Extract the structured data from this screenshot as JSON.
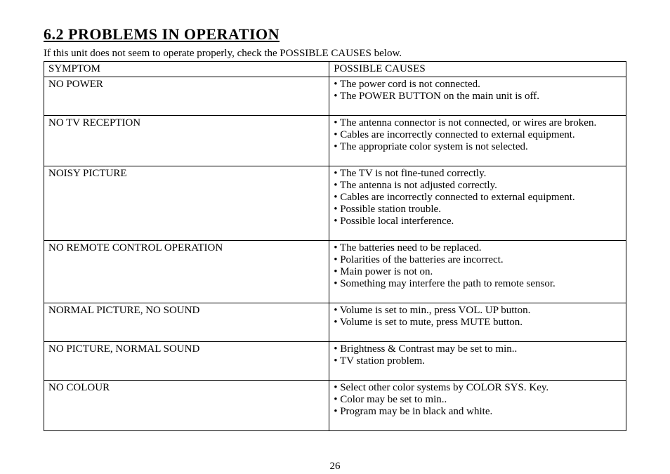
{
  "heading": "6.2  PROBLEMS IN OPERATION",
  "intro": "If this unit does not seem to operate properly, check the POSSIBLE CAUSES below.",
  "table": {
    "columns": [
      "SYMPTOM",
      "POSSIBLE CAUSES"
    ],
    "rows": [
      {
        "symptom": "NO POWER",
        "causes": [
          "• The power cord is not connected.",
          "• The POWER BUTTON on the main unit is off."
        ]
      },
      {
        "symptom": "NO TV RECEPTION",
        "causes": [
          "• The antenna connector is not connected, or wires are broken.",
          "• Cables are incorrectly connected to external equipment.",
          "• The appropriate color system is not selected."
        ]
      },
      {
        "symptom": "NOISY PICTURE",
        "causes": [
          "• The TV is not fine-tuned correctly.",
          "• The antenna is not adjusted correctly.",
          "• Cables are incorrectly connected to external equipment.",
          "• Possible station trouble.",
          "• Possible local interference."
        ]
      },
      {
        "symptom": "NO REMOTE CONTROL OPERATION",
        "causes": [
          "• The batteries need to be replaced.",
          "• Polarities of the batteries are incorrect.",
          "• Main power is not on.",
          "• Something may interfere the path to remote sensor."
        ]
      },
      {
        "symptom": "NORMAL PICTURE, NO SOUND",
        "causes": [
          "• Volume is set to min., press VOL. UP button.",
          "• Volume is set to mute, press MUTE button."
        ]
      },
      {
        "symptom": "NO PICTURE, NORMAL SOUND",
        "causes": [
          "• Brightness & Contrast may be set to min..",
          "• TV station problem."
        ]
      },
      {
        "symptom": "NO COLOUR",
        "causes": [
          "• Select other color systems by COLOR SYS. Key.",
          "• Color may be set to min..",
          "• Program may be in black and white."
        ]
      }
    ]
  },
  "page_number": "26"
}
